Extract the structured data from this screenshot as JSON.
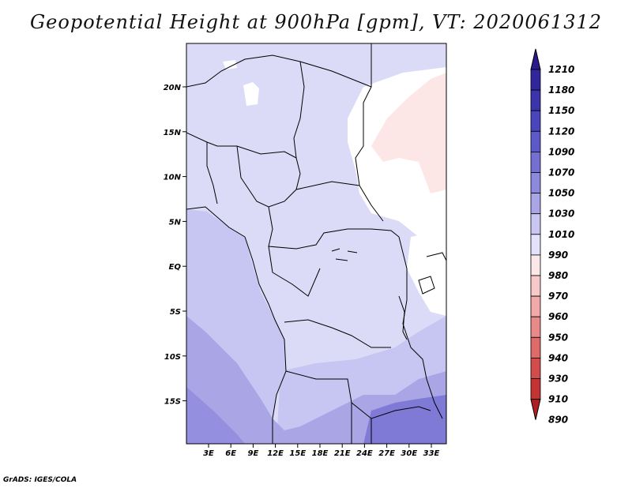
{
  "title": "Geopotential Height at 900hPa [gpm], VT: 2020061312",
  "footer": "GrADS: IGES/COLA",
  "map": {
    "lat_labels": [
      "20N",
      "15N",
      "10N",
      "5N",
      "EQ",
      "5S",
      "10S",
      "15S"
    ],
    "lon_labels": [
      "3E",
      "6E",
      "9E",
      "12E",
      "15E",
      "18E",
      "21E",
      "24E",
      "27E",
      "30E",
      "33E"
    ]
  },
  "colorbar": {
    "labels": [
      "1210",
      "1180",
      "1150",
      "1120",
      "1090",
      "1070",
      "1050",
      "1030",
      "1010",
      "990",
      "980",
      "970",
      "960",
      "950",
      "940",
      "930",
      "910",
      "890"
    ],
    "colors": [
      "#2a1a8c",
      "#32269c",
      "#3b34ac",
      "#4a45bc",
      "#5c59c8",
      "#7470d2",
      "#8d89dc",
      "#aaa6e6",
      "#c9c7f1",
      "#e3e2fa",
      "#fce8e8",
      "#f8c9c9",
      "#f1a9a9",
      "#e98a8a",
      "#df6a6a",
      "#d34c4c",
      "#c43333",
      "#b01f1f"
    ]
  },
  "field_colors": {
    "c1010": "#dcdbf7",
    "c1030": "#c7c5f1",
    "c1050": "#aaa6e6",
    "c1070": "#9490df",
    "c1090": "#7f7ad6",
    "c990": "#ffffff",
    "c980": "#fde6e6",
    "border": "#000000"
  }
}
